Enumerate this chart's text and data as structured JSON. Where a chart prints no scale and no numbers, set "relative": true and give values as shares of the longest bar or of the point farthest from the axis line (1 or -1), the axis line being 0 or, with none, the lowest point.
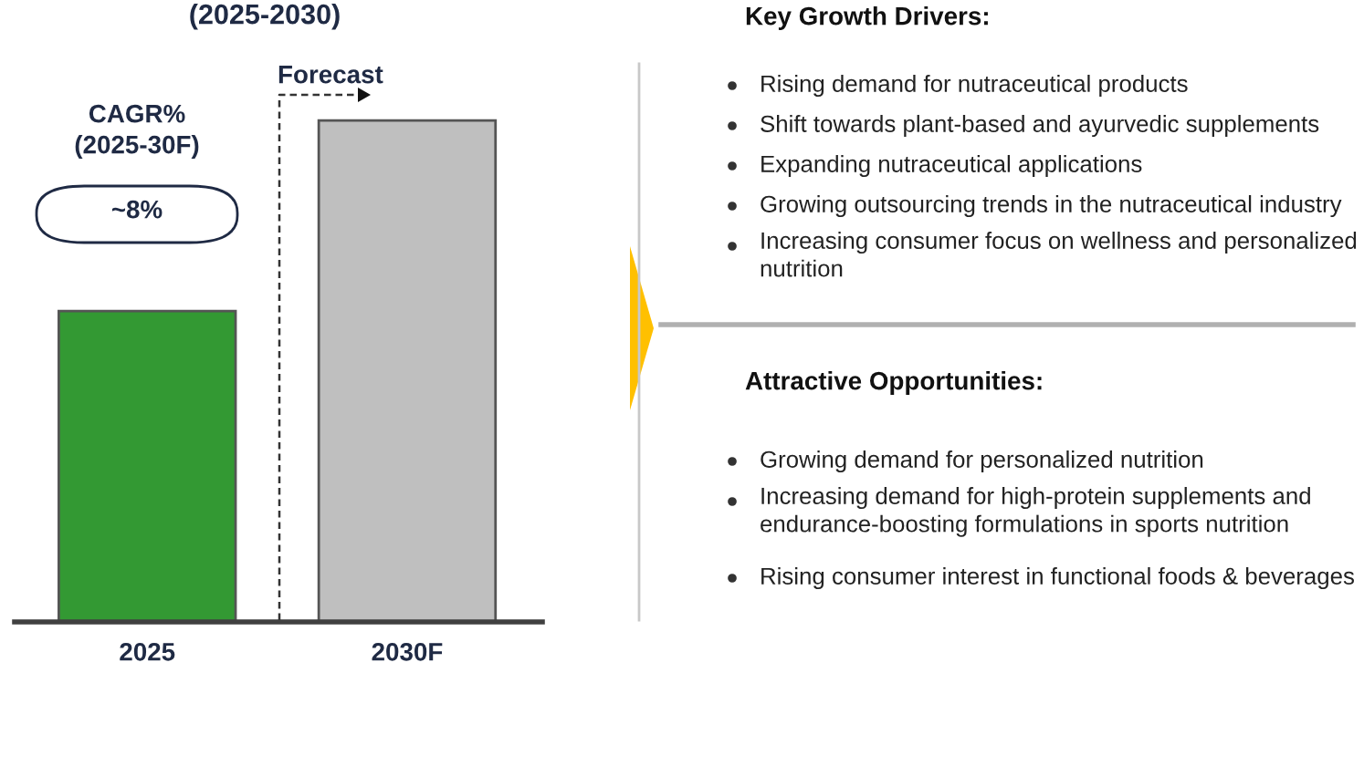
{
  "chart_data": [
    {
      "type": "bar",
      "title": "(2025-2030)",
      "categories": [
        "2025",
        "2030F"
      ],
      "values": [
        0.62,
        1
      ],
      "colors": [
        "#339933",
        "#bfbfbf"
      ],
      "relative": true,
      "annotations": [
        "CAGR%\n(2025-30F)",
        "~8%",
        "Forecast"
      ]
    },
    {
      "type": "other",
      "title": "Key Growth Drivers:",
      "annotations": [
        "Rising demand for nutraceutical products",
        "Shift towards plant-based and ayurvedic supplements",
        "Expanding nutraceutical applications",
        "Growing outsourcing trends in the nutraceutical industry",
        "Increasing consumer focus on wellness and personalized\nnutrition"
      ]
    },
    {
      "type": "other",
      "title": "Attractive Opportunities:",
      "annotations": [
        "Growing demand for personalized nutrition",
        "Increasing demand for high-protein supplements and\nendurance-boosting formulations in sports nutrition",
        "Rising consumer interest in functional foods & beverages"
      ]
    }
  ]
}
